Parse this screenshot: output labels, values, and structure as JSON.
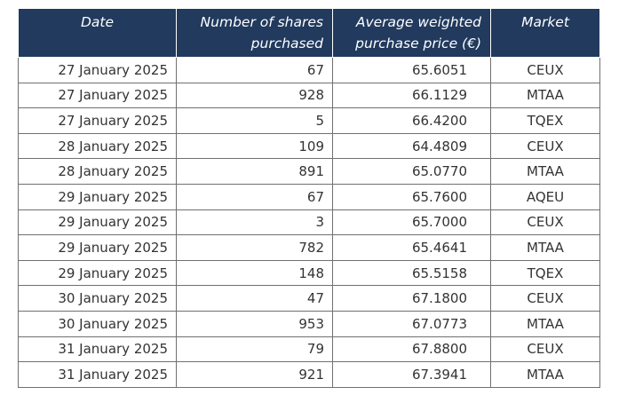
{
  "table": {
    "headers": {
      "date": "Date",
      "shares": "Number of shares purchased",
      "price": "Average weighted purchase price (€)",
      "market": "Market"
    },
    "rows": [
      {
        "date": "27 January 2025",
        "shares": "67",
        "price": "65.6051",
        "market": "CEUX"
      },
      {
        "date": "27 January 2025",
        "shares": "928",
        "price": "66.1129",
        "market": "MTAA"
      },
      {
        "date": "27 January 2025",
        "shares": "5",
        "price": "66.4200",
        "market": "TQEX"
      },
      {
        "date": "28 January 2025",
        "shares": "109",
        "price": "64.4809",
        "market": "CEUX"
      },
      {
        "date": "28 January 2025",
        "shares": "891",
        "price": "65.0770",
        "market": "MTAA"
      },
      {
        "date": "29 January 2025",
        "shares": "67",
        "price": "65.7600",
        "market": "AQEU"
      },
      {
        "date": "29 January 2025",
        "shares": "3",
        "price": "65.7000",
        "market": "CEUX"
      },
      {
        "date": "29 January 2025",
        "shares": "782",
        "price": "65.4641",
        "market": "MTAA"
      },
      {
        "date": "29 January 2025",
        "shares": "148",
        "price": "65.5158",
        "market": "TQEX"
      },
      {
        "date": "30 January 2025",
        "shares": "47",
        "price": "67.1800",
        "market": "CEUX"
      },
      {
        "date": "30 January 2025",
        "shares": "953",
        "price": "67.0773",
        "market": "MTAA"
      },
      {
        "date": "31 January 2025",
        "shares": "79",
        "price": "67.8800",
        "market": "CEUX"
      },
      {
        "date": "31 January 2025",
        "shares": "921",
        "price": "67.3941",
        "market": "MTAA"
      }
    ]
  },
  "colors": {
    "header_bg": "#213a5e",
    "header_text": "#ffffff",
    "border": "#707070",
    "cell_text": "#333333"
  }
}
